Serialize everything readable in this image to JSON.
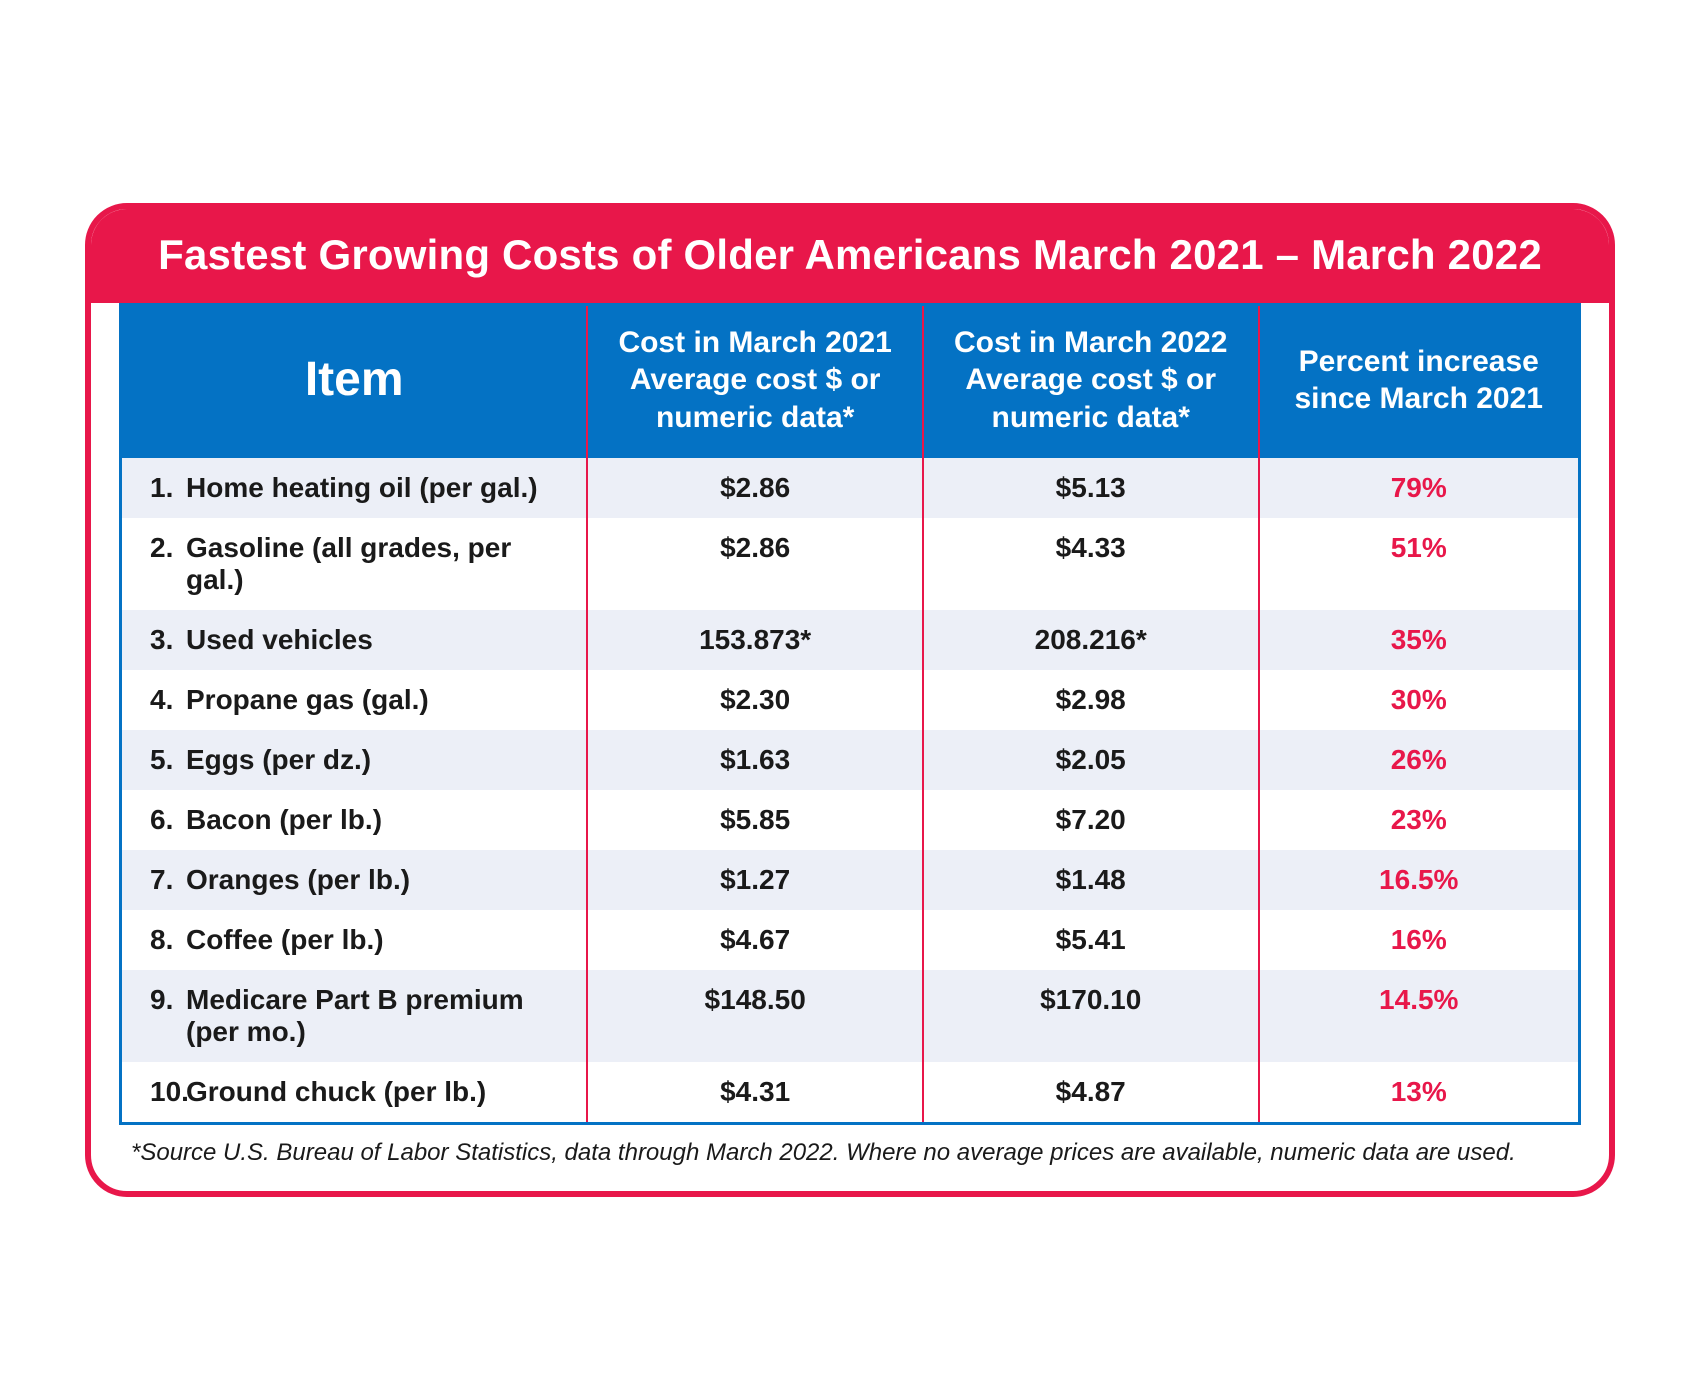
{
  "colors": {
    "accent_red": "#e8174a",
    "header_blue": "#0472c4",
    "table_border_blue": "#0472c4",
    "divider_red": "#e8174a",
    "row_alt_bg": "#ecefF7",
    "row_bg": "#ffffff",
    "text_dark": "#1a1a1a",
    "pct_red": "#e8174a"
  },
  "layout": {
    "col_widths_pct": [
      32,
      23,
      23,
      22
    ],
    "title_fontsize": 42,
    "item_header_fontsize": 48,
    "other_header_fontsize": 30,
    "body_fontsize": 28,
    "footnote_fontsize": 24
  },
  "title": "Fastest Growing Costs of Older Americans March 2021 – March 2022",
  "columns": {
    "item": "Item",
    "cost_2021": "Cost in March 2021 Average cost $ or numeric data*",
    "cost_2022": "Cost in March 2022 Average cost $ or numeric data*",
    "pct": "Percent increase since March 2021"
  },
  "rows": [
    {
      "n": "1.",
      "label": "Home heating oil (per gal.)",
      "c2021": "$2.86",
      "c2022": "$5.13",
      "pct": "79%"
    },
    {
      "n": "2.",
      "label": "Gasoline (all grades, per gal.)",
      "c2021": "$2.86",
      "c2022": "$4.33",
      "pct": "51%"
    },
    {
      "n": "3.",
      "label": "Used vehicles",
      "c2021": "153.873*",
      "c2022": "208.216*",
      "pct": "35%"
    },
    {
      "n": "4.",
      "label": "Propane gas (gal.)",
      "c2021": "$2.30",
      "c2022": "$2.98",
      "pct": "30%"
    },
    {
      "n": "5.",
      "label": "Eggs (per dz.)",
      "c2021": "$1.63",
      "c2022": "$2.05",
      "pct": "26%"
    },
    {
      "n": "6.",
      "label": "Bacon (per lb.)",
      "c2021": "$5.85",
      "c2022": "$7.20",
      "pct": "23%"
    },
    {
      "n": "7.",
      "label": "Oranges (per lb.)",
      "c2021": "$1.27",
      "c2022": "$1.48",
      "pct": "16.5%"
    },
    {
      "n": "8.",
      "label": "Coffee (per lb.)",
      "c2021": "$4.67",
      "c2022": "$5.41",
      "pct": "16%"
    },
    {
      "n": "9.",
      "label": "Medicare Part B premium (per mo.)",
      "c2021": "$148.50",
      "c2022": "$170.10",
      "pct": "14.5%"
    },
    {
      "n": "10.",
      "label": "Ground chuck (per lb.)",
      "c2021": "$4.31",
      "c2022": "$4.87",
      "pct": "13%"
    }
  ],
  "footnote": "*Source U.S. Bureau of Labor Statistics, data through March 2022.  Where no average prices are available, numeric data are used."
}
